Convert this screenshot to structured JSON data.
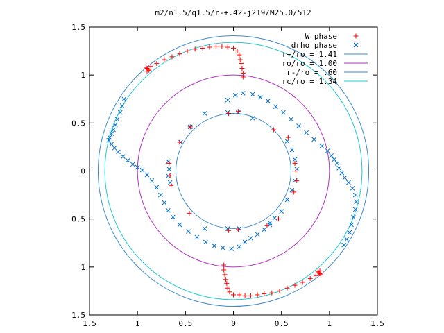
{
  "chart_data": {
    "type": "scatter",
    "title": "m2/n1.5/q1.5/r-+.42-j219/M25.0/512",
    "xlabel": "",
    "ylabel": "",
    "xlim": [
      -1.5,
      1.5
    ],
    "ylim": [
      -1.5,
      1.5
    ],
    "x_ticks": [
      "1.5",
      "1",
      "0.5",
      "0",
      "0.5",
      "1",
      "1.5"
    ],
    "y_ticks": [
      "1.5",
      "1",
      "0.5",
      "0",
      "0.5",
      "1",
      "1.5"
    ],
    "grid": false,
    "legend_position": "top-right",
    "circles": [
      {
        "name": "r+/ro = 1.41",
        "radius": 1.41,
        "color": "#3c8cc8"
      },
      {
        "name": "ro/ro = 1.00",
        "radius": 1.0,
        "color": "#b030c0"
      },
      {
        "name": "r-/ro = .60",
        "radius": 0.6,
        "color": "#3c8cc8"
      },
      {
        "name": "rc/ro = 1.34",
        "radius": 1.34,
        "color": "#20c8d0"
      }
    ],
    "series": [
      {
        "name": "W phase",
        "marker": "plus",
        "color": "#ff0000",
        "points": [
          [
            -0.91,
            1.08
          ],
          [
            -0.9,
            1.07
          ],
          [
            -0.89,
            1.06
          ],
          [
            -0.88,
            1.05
          ],
          [
            -0.9,
            1.04
          ],
          [
            -0.86,
            1.09
          ],
          [
            -0.8,
            1.12
          ],
          [
            -0.72,
            1.16
          ],
          [
            -0.64,
            1.19
          ],
          [
            -0.56,
            1.22
          ],
          [
            -0.48,
            1.25
          ],
          [
            -0.4,
            1.27
          ],
          [
            -0.32,
            1.28
          ],
          [
            -0.25,
            1.29
          ],
          [
            -0.18,
            1.3
          ],
          [
            -0.12,
            1.3
          ],
          [
            -0.06,
            1.29
          ],
          [
            0.0,
            1.28
          ],
          [
            0.04,
            1.25
          ],
          [
            0.06,
            1.21
          ],
          [
            0.07,
            1.16
          ],
          [
            0.08,
            1.12
          ],
          [
            0.09,
            1.07
          ],
          [
            0.1,
            1.02
          ],
          [
            0.1,
            0.98
          ],
          [
            -0.45,
            0.46
          ],
          [
            -0.56,
            0.3
          ],
          [
            -0.67,
            0.08
          ],
          [
            -0.66,
            -0.05
          ],
          [
            -0.65,
            -0.15
          ],
          [
            -0.46,
            -0.44
          ],
          [
            -0.05,
            -0.62
          ],
          [
            0.05,
            -0.61
          ],
          [
            0.35,
            -0.57
          ],
          [
            0.47,
            -0.5
          ],
          [
            0.57,
            0.35
          ],
          [
            0.64,
            0.08
          ],
          [
            0.65,
            0.0
          ],
          [
            0.66,
            -0.1
          ],
          [
            0.63,
            -0.22
          ],
          [
            0.42,
            0.43
          ],
          [
            0.05,
            0.62
          ],
          [
            -0.05,
            0.6
          ],
          [
            -0.1,
            -0.98
          ],
          [
            -0.1,
            -1.03
          ],
          [
            -0.09,
            -1.08
          ],
          [
            -0.08,
            -1.13
          ],
          [
            -0.07,
            -1.17
          ],
          [
            -0.06,
            -1.22
          ],
          [
            -0.04,
            -1.26
          ],
          [
            0.0,
            -1.29
          ],
          [
            0.06,
            -1.29
          ],
          [
            0.12,
            -1.3
          ],
          [
            0.18,
            -1.3
          ],
          [
            0.25,
            -1.29
          ],
          [
            0.32,
            -1.28
          ],
          [
            0.4,
            -1.27
          ],
          [
            0.48,
            -1.25
          ],
          [
            0.56,
            -1.22
          ],
          [
            0.64,
            -1.19
          ],
          [
            0.72,
            -1.16
          ],
          [
            0.8,
            -1.12
          ],
          [
            0.86,
            -1.09
          ],
          [
            0.9,
            -1.04
          ],
          [
            0.88,
            -1.05
          ],
          [
            0.89,
            -1.06
          ],
          [
            0.9,
            -1.07
          ],
          [
            0.91,
            -1.08
          ]
        ]
      },
      {
        "name": "drho phase",
        "marker": "cross",
        "color": "#0070d0",
        "points": [
          [
            -1.14,
            0.75
          ],
          [
            -1.16,
            0.68
          ],
          [
            -1.18,
            0.61
          ],
          [
            -1.21,
            0.54
          ],
          [
            -1.23,
            0.48
          ],
          [
            -1.25,
            0.43
          ],
          [
            -1.27,
            0.39
          ],
          [
            -1.29,
            0.35
          ],
          [
            -1.3,
            0.32
          ],
          [
            -1.27,
            0.28
          ],
          [
            -1.24,
            0.24
          ],
          [
            -1.2,
            0.2
          ],
          [
            -1.15,
            0.15
          ],
          [
            -1.1,
            0.11
          ],
          [
            -1.05,
            0.07
          ],
          [
            -1.0,
            0.04
          ],
          [
            -0.95,
            0.01
          ],
          [
            -0.9,
            -0.04
          ],
          [
            -0.85,
            -0.1
          ],
          [
            -0.8,
            -0.17
          ],
          [
            -0.76,
            -0.25
          ],
          [
            -0.72,
            -0.33
          ],
          [
            -0.68,
            -0.41
          ],
          [
            -0.63,
            -0.48
          ],
          [
            -0.56,
            -0.56
          ],
          [
            -0.47,
            -0.63
          ],
          [
            -0.38,
            -0.69
          ],
          [
            -0.29,
            -0.74
          ],
          [
            -0.2,
            -0.78
          ],
          [
            -0.11,
            -0.8
          ],
          [
            -0.02,
            -0.81
          ],
          [
            0.06,
            -0.79
          ],
          [
            0.12,
            -0.74
          ],
          [
            0.18,
            -0.7
          ],
          [
            0.25,
            -0.66
          ],
          [
            0.32,
            -0.61
          ],
          [
            0.38,
            -0.56
          ],
          [
            0.43,
            -0.49
          ],
          [
            0.5,
            -0.42
          ],
          [
            0.56,
            -0.3
          ],
          [
            0.61,
            -0.2
          ],
          [
            0.64,
            -0.1
          ],
          [
            0.66,
            0.02
          ],
          [
            0.64,
            0.12
          ],
          [
            0.61,
            0.22
          ],
          [
            0.56,
            0.31
          ],
          [
            0.2,
            0.55
          ],
          [
            0.05,
            0.61
          ],
          [
            -0.06,
            0.61
          ],
          [
            -0.3,
            0.6
          ],
          [
            -0.3,
            -0.6
          ],
          [
            -0.06,
            -0.6
          ],
          [
            0.06,
            -0.6
          ],
          [
            0.38,
            -0.54
          ],
          [
            -0.68,
            0.1
          ],
          [
            -0.67,
            0.02
          ],
          [
            -0.68,
            -0.05
          ],
          [
            -0.66,
            -0.12
          ],
          [
            -0.55,
            0.3
          ],
          [
            -0.45,
            0.46
          ],
          [
            -0.06,
            0.74
          ],
          [
            0.02,
            0.79
          ],
          [
            0.1,
            0.81
          ],
          [
            0.2,
            0.8
          ],
          [
            0.28,
            0.77
          ],
          [
            0.36,
            0.73
          ],
          [
            0.44,
            0.67
          ],
          [
            0.52,
            0.61
          ],
          [
            0.6,
            0.54
          ],
          [
            0.68,
            0.47
          ],
          [
            0.76,
            0.4
          ],
          [
            0.84,
            0.33
          ],
          [
            0.92,
            0.26
          ],
          [
            0.98,
            0.21
          ],
          [
            1.02,
            0.16
          ],
          [
            1.05,
            0.12
          ],
          [
            1.08,
            0.08
          ],
          [
            1.1,
            0.03
          ],
          [
            1.13,
            -0.02
          ],
          [
            1.16,
            -0.07
          ],
          [
            1.2,
            -0.12
          ],
          [
            1.24,
            -0.18
          ],
          [
            1.27,
            -0.25
          ],
          [
            1.28,
            -0.32
          ],
          [
            1.27,
            -0.4
          ],
          [
            1.25,
            -0.48
          ],
          [
            1.23,
            -0.56
          ],
          [
            1.21,
            -0.64
          ],
          [
            1.18,
            -0.71
          ],
          [
            1.15,
            -0.77
          ]
        ]
      }
    ]
  }
}
